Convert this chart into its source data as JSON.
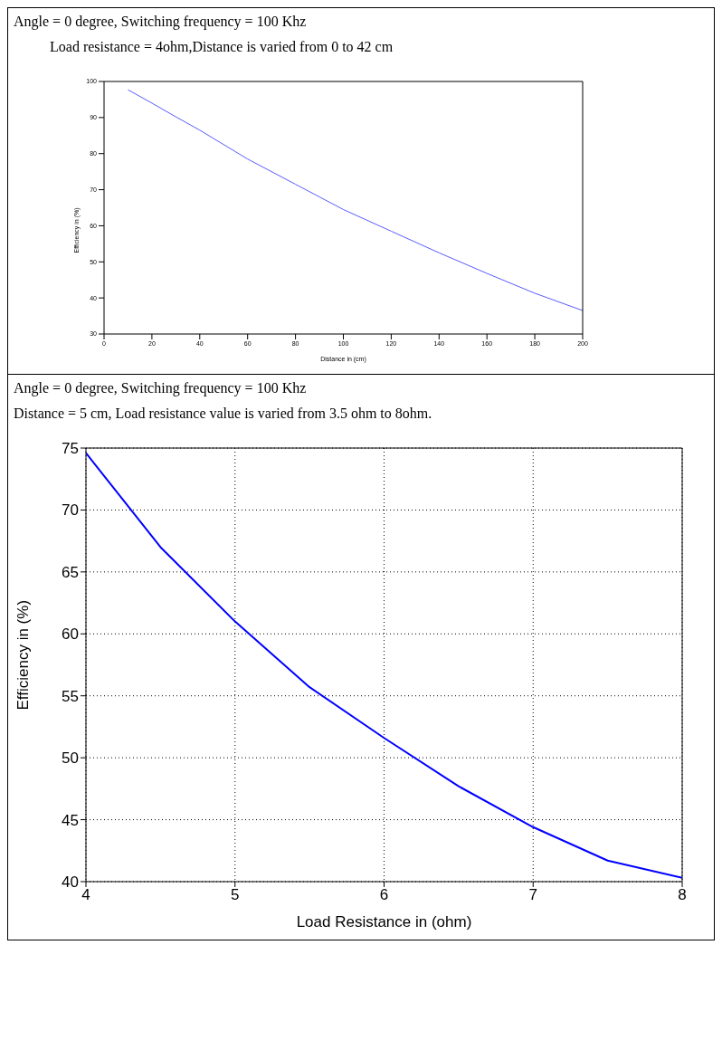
{
  "chart_data": [
    {
      "type": "line",
      "title": "Angle = 0 degree, Switching frequency = 100 Khz",
      "subtitle": "Load resistance = 4ohm,Distance is varied from 0 to 42 cm",
      "xlabel": "Distance in (cm)",
      "ylabel": "Efficiency in (%)",
      "x": [
        10,
        20,
        30,
        40,
        60,
        80,
        100,
        120,
        140,
        160,
        180,
        200
      ],
      "series": [
        {
          "color": "#5a5aff",
          "values": [
            97.7,
            94.0,
            90.2,
            86.5,
            78.5,
            71.5,
            64.5,
            58.5,
            52.5,
            46.8,
            41.3,
            36.5
          ]
        }
      ],
      "xlim": [
        0,
        200
      ],
      "xticks": [
        0,
        20,
        40,
        60,
        80,
        100,
        120,
        140,
        160,
        180,
        200
      ],
      "ylim": [
        30,
        100
      ],
      "yticks": [
        30,
        40,
        50,
        60,
        70,
        80,
        90,
        100
      ],
      "grid": false,
      "marker": "none",
      "line_style": "solid"
    },
    {
      "type": "line",
      "title": "Angle = 0 degree, Switching frequency = 100 Khz",
      "subtitle": "Distance = 5 cm, Load resistance value is varied from 3.5 ohm to 8ohm.",
      "xlabel": "Load Resistance in (ohm)",
      "ylabel": "Efficiency in (%)",
      "x": [
        4,
        4.5,
        5,
        5.5,
        6,
        6.5,
        7,
        7.5,
        8
      ],
      "series": [
        {
          "color": "#0000ff",
          "values": [
            74.6,
            67,
            61,
            55.7,
            51.6,
            47.7,
            44.4,
            41.7,
            40.3
          ]
        }
      ],
      "xlim": [
        4,
        8
      ],
      "xticks": [
        4,
        5,
        6,
        7,
        8
      ],
      "ylim": [
        40,
        75
      ],
      "yticks": [
        40,
        45,
        50,
        55,
        60,
        65,
        70,
        75
      ],
      "grid": true,
      "marker": "none",
      "line_style": "solid"
    }
  ]
}
